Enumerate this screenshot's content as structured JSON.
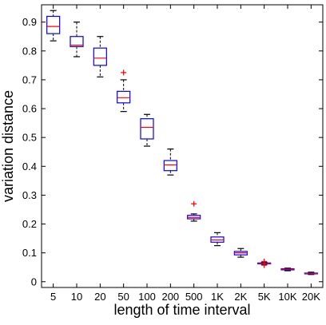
{
  "chart_data": {
    "type": "box",
    "xlabel": "length of time interval",
    "ylabel": "variation distance",
    "ylim": [
      -0.02,
      0.96
    ],
    "yticks": [
      0,
      0.1,
      0.2,
      0.3,
      0.4,
      0.5,
      0.6,
      0.7,
      0.8,
      0.9
    ],
    "ytick_labels": [
      "0",
      "0.1",
      "0.2",
      "0.3",
      "0.4",
      "0.5",
      "0.6",
      "0.7",
      "0.8",
      "0.9"
    ],
    "categories": [
      "5",
      "10",
      "20",
      "50",
      "100",
      "200",
      "500",
      "1K",
      "2K",
      "5K",
      "10K",
      "20K"
    ],
    "boxes": [
      {
        "low": 0.835,
        "q1": 0.86,
        "median": 0.885,
        "q3": 0.92,
        "high": 0.94,
        "outliers": []
      },
      {
        "low": 0.78,
        "q1": 0.815,
        "median": 0.82,
        "q3": 0.85,
        "high": 0.9,
        "outliers": []
      },
      {
        "low": 0.71,
        "q1": 0.75,
        "median": 0.775,
        "q3": 0.81,
        "high": 0.85,
        "outliers": []
      },
      {
        "low": 0.59,
        "q1": 0.62,
        "median": 0.638,
        "q3": 0.66,
        "high": 0.7,
        "outliers": [
          0.725
        ]
      },
      {
        "low": 0.47,
        "q1": 0.495,
        "median": 0.535,
        "q3": 0.565,
        "high": 0.58,
        "outliers": []
      },
      {
        "low": 0.37,
        "q1": 0.385,
        "median": 0.405,
        "q3": 0.42,
        "high": 0.46,
        "outliers": []
      },
      {
        "low": 0.21,
        "q1": 0.218,
        "median": 0.223,
        "q3": 0.23,
        "high": 0.235,
        "outliers": [
          0.27
        ]
      },
      {
        "low": 0.125,
        "q1": 0.137,
        "median": 0.145,
        "q3": 0.155,
        "high": 0.17,
        "outliers": []
      },
      {
        "low": 0.085,
        "q1": 0.093,
        "median": 0.1,
        "q3": 0.105,
        "high": 0.115,
        "outliers": []
      },
      {
        "low": 0.06,
        "q1": 0.062,
        "median": 0.063,
        "q3": 0.065,
        "high": 0.067,
        "outliers": [
          0.057,
          0.07
        ]
      },
      {
        "low": 0.038,
        "q1": 0.041,
        "median": 0.043,
        "q3": 0.045,
        "high": 0.047,
        "outliers": []
      },
      {
        "low": 0.025,
        "q1": 0.028,
        "median": 0.029,
        "q3": 0.03,
        "high": 0.033,
        "outliers": []
      }
    ],
    "box_color": "#0000ff",
    "median_color": "#ff0000",
    "whisker_color": "#000000",
    "outlier_color": "#ff0000",
    "grid": false,
    "legend": "none"
  }
}
